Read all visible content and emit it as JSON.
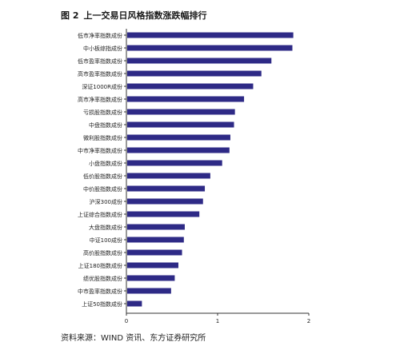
{
  "figure": {
    "label": "图 2",
    "title": "上一交易日风格指数涨跌幅排行",
    "source": "资料来源：WIND 资讯、东方证券研究所"
  },
  "chart_data": {
    "type": "bar",
    "orientation": "horizontal",
    "title": "",
    "xlabel": "",
    "ylabel": "",
    "xlim": [
      0,
      2
    ],
    "x_ticks": [
      "0",
      "1",
      "2"
    ],
    "grid": false,
    "bar_color": "#2e2a86",
    "categories": [
      "低市净率指数成份",
      "中小板综指成份",
      "低市盈率指数成份",
      "高市盈率指数成份",
      "深证1000R成份",
      "高市净率指数成份",
      "亏损股指数成份",
      "中盘指数成份",
      "微利股指数成份",
      "中市净率指数成份",
      "小盘指数成份",
      "低价股指数成份",
      "中价股指数成份",
      "沪深300成份",
      "上证综合指数成份",
      "大盘指数成份",
      "中证100成份",
      "高价股指数成份",
      "上证180指数成份",
      "绩优股指数成份",
      "中市盈率指数成份",
      "上证50指数成份"
    ],
    "values": [
      1.83,
      1.82,
      1.59,
      1.48,
      1.39,
      1.29,
      1.19,
      1.18,
      1.14,
      1.13,
      1.05,
      0.92,
      0.86,
      0.84,
      0.8,
      0.64,
      0.63,
      0.61,
      0.57,
      0.53,
      0.49,
      0.17
    ]
  }
}
